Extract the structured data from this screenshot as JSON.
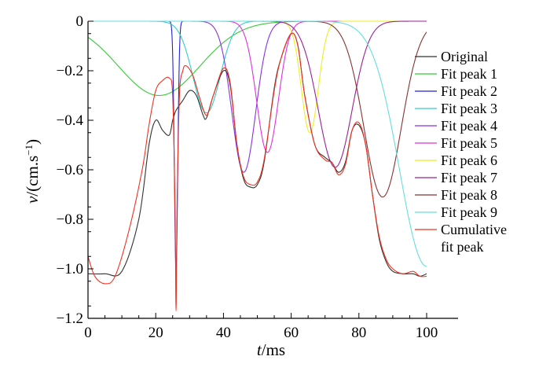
{
  "chart_data": {
    "type": "line",
    "title": "",
    "xlabel_italic": "t",
    "xlabel_unit": "/ms",
    "ylabel_italic": "v",
    "ylabel_unit": "/(cm.s",
    "ylabel_exp": "−1",
    "ylabel_close": ")",
    "xlim": [
      0,
      100
    ],
    "ylim": [
      -1.2,
      0
    ],
    "x_ticks": [
      0,
      20,
      40,
      60,
      80,
      100
    ],
    "x_tick_labels": [
      "0",
      "20",
      "40",
      "60",
      "80",
      "100"
    ],
    "y_ticks": [
      0,
      -0.2,
      -0.4,
      -0.6,
      -0.8,
      -1.0,
      -1.2
    ],
    "y_tick_labels": [
      "0",
      "−0.2",
      "−0.4",
      "−0.6",
      "−0.8",
      "−1.0",
      "−1.2"
    ],
    "legend_position": "right",
    "series": [
      {
        "name": "Original",
        "color": "#333333",
        "kind": "points",
        "points": [
          [
            0,
            -1.02
          ],
          [
            5,
            -1.02
          ],
          [
            10,
            -1.01
          ],
          [
            15,
            -0.8
          ],
          [
            18,
            -0.5
          ],
          [
            20,
            -0.4
          ],
          [
            22,
            -0.44
          ],
          [
            24,
            -0.46
          ],
          [
            25,
            -0.4
          ],
          [
            26,
            -0.36
          ],
          [
            28,
            -0.32
          ],
          [
            30,
            -0.28
          ],
          [
            32,
            -0.3
          ],
          [
            34,
            -0.38
          ],
          [
            35,
            -0.39
          ],
          [
            37,
            -0.3
          ],
          [
            40,
            -0.2
          ],
          [
            42,
            -0.26
          ],
          [
            44,
            -0.5
          ],
          [
            46,
            -0.64
          ],
          [
            48,
            -0.67
          ],
          [
            50,
            -0.66
          ],
          [
            52,
            -0.57
          ],
          [
            55,
            -0.27
          ],
          [
            57,
            -0.15
          ],
          [
            60,
            -0.05
          ],
          [
            62,
            -0.1
          ],
          [
            64,
            -0.3
          ],
          [
            67,
            -0.5
          ],
          [
            70,
            -0.55
          ],
          [
            72,
            -0.57
          ],
          [
            74,
            -0.61
          ],
          [
            76,
            -0.57
          ],
          [
            78,
            -0.44
          ],
          [
            80,
            -0.42
          ],
          [
            82,
            -0.5
          ],
          [
            84,
            -0.7
          ],
          [
            86,
            -0.88
          ],
          [
            88,
            -0.97
          ],
          [
            90,
            -1.01
          ],
          [
            93,
            -1.02
          ],
          [
            96,
            -1.02
          ],
          [
            98,
            -1.03
          ],
          [
            100,
            -1.02
          ]
        ]
      },
      {
        "name": "Fit peak 1",
        "color": "#33cc33",
        "kind": "gauss",
        "x0": 21,
        "sigma": 12,
        "amp": -0.3
      },
      {
        "name": "Fit peak 2",
        "color": "#2222dd",
        "kind": "gauss",
        "x0": 26,
        "sigma": 0.5,
        "amp": -1.0
      },
      {
        "name": "Fit peak 3",
        "color": "#33cccc",
        "kind": "gauss",
        "x0": 35,
        "sigma": 4,
        "amp": -0.37
      },
      {
        "name": "Fit peak 4",
        "color": "#8833dd",
        "kind": "gauss",
        "x0": 46,
        "sigma": 3.5,
        "amp": -0.61
      },
      {
        "name": "Fit peak 5",
        "color": "#dd33dd",
        "kind": "gauss",
        "x0": 53,
        "sigma": 3.2,
        "amp": -0.53
      },
      {
        "name": "Fit peak 6",
        "color": "#eeee22",
        "kind": "gauss",
        "x0": 65.5,
        "sigma": 2.5,
        "amp": -0.45
      },
      {
        "name": "Fit peak 7",
        "color": "#992299",
        "kind": "gauss",
        "x0": 73,
        "sigma": 5,
        "amp": -0.59
      },
      {
        "name": "Fit peak 8",
        "color": "#883333",
        "kind": "gauss",
        "x0": 87,
        "sigma": 5.5,
        "amp": -0.71
      },
      {
        "name": "Fit peak 9",
        "color": "#66dddd",
        "kind": "gauss",
        "x0": 100,
        "sigma": 8,
        "amp": -0.99
      },
      {
        "name": "Cumulative\nfit peak",
        "color": "#ee3322",
        "kind": "points",
        "points": [
          [
            0,
            -0.95
          ],
          [
            2,
            -1.03
          ],
          [
            5,
            -1.06
          ],
          [
            8,
            -1.03
          ],
          [
            12,
            -0.85
          ],
          [
            16,
            -0.6
          ],
          [
            18,
            -0.42
          ],
          [
            20,
            -0.28
          ],
          [
            22,
            -0.24
          ],
          [
            24,
            -0.23
          ],
          [
            25,
            -0.3
          ],
          [
            25.7,
            -0.75
          ],
          [
            26,
            -1.17
          ],
          [
            26.3,
            -0.75
          ],
          [
            27,
            -0.3
          ],
          [
            28,
            -0.2
          ],
          [
            29,
            -0.18
          ],
          [
            31,
            -0.22
          ],
          [
            33,
            -0.31
          ],
          [
            35,
            -0.38
          ],
          [
            37,
            -0.3
          ],
          [
            40,
            -0.19
          ],
          [
            42,
            -0.25
          ],
          [
            44,
            -0.5
          ],
          [
            46,
            -0.63
          ],
          [
            48,
            -0.66
          ],
          [
            50,
            -0.65
          ],
          [
            52,
            -0.56
          ],
          [
            55,
            -0.28
          ],
          [
            57,
            -0.15
          ],
          [
            60,
            -0.05
          ],
          [
            62,
            -0.1
          ],
          [
            64,
            -0.3
          ],
          [
            67,
            -0.5
          ],
          [
            70,
            -0.56
          ],
          [
            72,
            -0.57
          ],
          [
            74,
            -0.62
          ],
          [
            76,
            -0.58
          ],
          [
            78,
            -0.44
          ],
          [
            80,
            -0.41
          ],
          [
            82,
            -0.5
          ],
          [
            84,
            -0.7
          ],
          [
            86,
            -0.87
          ],
          [
            88,
            -0.96
          ],
          [
            90,
            -1.0
          ],
          [
            93,
            -1.02
          ],
          [
            96,
            -1.01
          ],
          [
            98,
            -1.03
          ],
          [
            100,
            -1.03
          ]
        ]
      }
    ]
  }
}
